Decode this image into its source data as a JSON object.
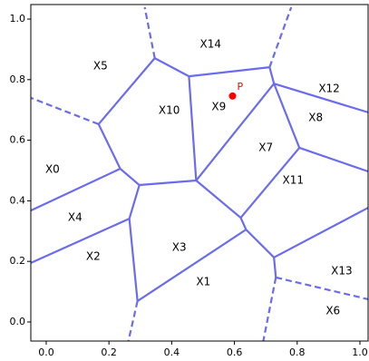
{
  "chart_data": {
    "type": "voronoi",
    "xlim": [
      -0.049,
      1.026
    ],
    "ylim": [
      -0.063,
      1.048
    ],
    "xticks": [
      {
        "value": 0,
        "label": "0.0"
      },
      {
        "value": 0.2,
        "label": "0.2"
      },
      {
        "value": 0.4,
        "label": "0.4"
      },
      {
        "value": 0.6,
        "label": "0.6"
      },
      {
        "value": 0.8,
        "label": "0.8"
      },
      {
        "value": 1,
        "label": "1.0"
      }
    ],
    "yticks": [
      {
        "value": 0,
        "label": "0.0"
      },
      {
        "value": 0.2,
        "label": "0.2"
      },
      {
        "value": 0.4,
        "label": "0.4"
      },
      {
        "value": 0.6,
        "label": "0.6"
      },
      {
        "value": 0.8,
        "label": "0.8"
      },
      {
        "value": 1,
        "label": "1.0"
      }
    ],
    "edge_color": "#6b6bf0",
    "edges": [
      {
        "x": [
          0.167,
          0.346
        ],
        "y": [
          0.653,
          0.871
        ],
        "dashed": false
      },
      {
        "x": [
          0.346,
          0.455
        ],
        "y": [
          0.871,
          0.811
        ],
        "dashed": false
      },
      {
        "x": [
          0.455,
          0.712
        ],
        "y": [
          0.811,
          0.841
        ],
        "dashed": false
      },
      {
        "x": [
          0.712,
          0.726
        ],
        "y": [
          0.841,
          0.787
        ],
        "dashed": false
      },
      {
        "x": [
          0.455,
          0.478
        ],
        "y": [
          0.811,
          0.467
        ],
        "dashed": false
      },
      {
        "x": [
          0.726,
          0.478
        ],
        "y": [
          0.787,
          0.467
        ],
        "dashed": false
      },
      {
        "x": [
          0.167,
          0.236
        ],
        "y": [
          0.653,
          0.506
        ],
        "dashed": false
      },
      {
        "x": [
          0.236,
          0.297
        ],
        "y": [
          0.506,
          0.452
        ],
        "dashed": false
      },
      {
        "x": [
          0.297,
          0.478
        ],
        "y": [
          0.452,
          0.467
        ],
        "dashed": false
      },
      {
        "x": [
          0.478,
          0.62
        ],
        "y": [
          0.467,
          0.344
        ],
        "dashed": false
      },
      {
        "x": [
          0.62,
          0.637
        ],
        "y": [
          0.344,
          0.305
        ],
        "dashed": false
      },
      {
        "x": [
          0.726,
          0.807
        ],
        "y": [
          0.787,
          0.575
        ],
        "dashed": false
      },
      {
        "x": [
          0.807,
          0.62
        ],
        "y": [
          0.575,
          0.344
        ],
        "dashed": false
      },
      {
        "x": [
          0.265,
          0.297
        ],
        "y": [
          0.341,
          0.452
        ],
        "dashed": false
      },
      {
        "x": [
          0.265,
          0.291
        ],
        "y": [
          0.341,
          0.069
        ],
        "dashed": false
      },
      {
        "x": [
          0.291,
          0.637
        ],
        "y": [
          0.069,
          0.305
        ],
        "dashed": false
      },
      {
        "x": [
          0.637,
          0.726
        ],
        "y": [
          0.305,
          0.213
        ],
        "dashed": false
      },
      {
        "x": [
          0.726,
          0.732
        ],
        "y": [
          0.213,
          0.147
        ],
        "dashed": false
      },
      {
        "x": [
          0.726,
          1.026
        ],
        "y": [
          0.787,
          0.692
        ],
        "dashed": false
      },
      {
        "x": [
          0.807,
          1.026
        ],
        "y": [
          0.575,
          0.497
        ],
        "dashed": false
      },
      {
        "x": [
          0.726,
          1.026
        ],
        "y": [
          0.213,
          0.377
        ],
        "dashed": false
      },
      {
        "x": [
          0.236,
          -0.049
        ],
        "y": [
          0.506,
          0.368
        ],
        "dashed": false
      },
      {
        "x": [
          0.265,
          -0.049
        ],
        "y": [
          0.341,
          0.195
        ],
        "dashed": false
      },
      {
        "x": [
          0.167,
          -0.049
        ],
        "y": [
          0.653,
          0.74
        ],
        "dashed": true
      },
      {
        "x": [
          0.346,
          0.314
        ],
        "y": [
          0.871,
          1.039
        ],
        "dashed": true
      },
      {
        "x": [
          0.712,
          0.781
        ],
        "y": [
          0.841,
          1.039
        ],
        "dashed": true
      },
      {
        "x": [
          0.732,
          1.026
        ],
        "y": [
          0.147,
          0.075
        ],
        "dashed": true
      },
      {
        "x": [
          0.732,
          0.692
        ],
        "y": [
          0.147,
          -0.063
        ],
        "dashed": true
      },
      {
        "x": [
          0.291,
          0.262
        ],
        "y": [
          0.069,
          -0.063
        ],
        "dashed": true
      }
    ],
    "regions": [
      {
        "label": "X14",
        "x": 0.524,
        "y": 0.916
      },
      {
        "label": "X5",
        "x": 0.173,
        "y": 0.844
      },
      {
        "label": "X12",
        "x": 0.902,
        "y": 0.769
      },
      {
        "label": "X10",
        "x": 0.392,
        "y": 0.698
      },
      {
        "label": "X9",
        "x": 0.55,
        "y": 0.71
      },
      {
        "label": "X8",
        "x": 0.859,
        "y": 0.674
      },
      {
        "label": "X0",
        "x": 0.02,
        "y": 0.503
      },
      {
        "label": "X7",
        "x": 0.7,
        "y": 0.575
      },
      {
        "label": "X11",
        "x": 0.787,
        "y": 0.467
      },
      {
        "label": "X4",
        "x": 0.092,
        "y": 0.344
      },
      {
        "label": "X3",
        "x": 0.424,
        "y": 0.246
      },
      {
        "label": "X2",
        "x": 0.15,
        "y": 0.216
      },
      {
        "label": "X1",
        "x": 0.501,
        "y": 0.132
      },
      {
        "label": "X13",
        "x": 0.942,
        "y": 0.168
      },
      {
        "label": "X6",
        "x": 0.914,
        "y": 0.036
      }
    ],
    "point": {
      "label": "P",
      "x": 0.594,
      "y": 0.746,
      "color": "#ff0000"
    }
  }
}
